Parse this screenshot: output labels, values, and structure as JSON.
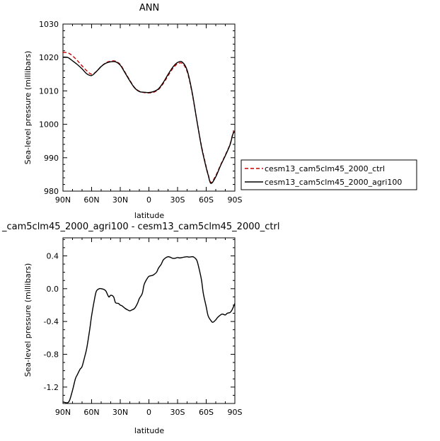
{
  "chart_data": [
    {
      "type": "line",
      "title": "ANN",
      "xlabel": "latitude",
      "ylabel": "Sea-level pressure (millibars)",
      "x_ticks": [
        "90N",
        "60N",
        "30N",
        "0",
        "30S",
        "60S",
        "90S"
      ],
      "y_ticks": [
        "980",
        "990",
        "1000",
        "1010",
        "1020",
        "1030"
      ],
      "xlim": [
        90,
        -90
      ],
      "ylim": [
        980,
        1030
      ],
      "legend_position": "lower-right, outside plot",
      "series": [
        {
          "name": "cesm13_cam5clm45_2000_ctrl",
          "color": "#cc0000",
          "dash": "dashed",
          "x": [
            90,
            85,
            80,
            75,
            70,
            65,
            60,
            55,
            50,
            45,
            40,
            35,
            30,
            25,
            20,
            15,
            10,
            5,
            0,
            -5,
            -10,
            -15,
            -20,
            -25,
            -30,
            -35,
            -40,
            -45,
            -50,
            -55,
            -60,
            -62,
            -65,
            -70,
            -75,
            -80,
            -85,
            -88,
            -90
          ],
          "y": [
            1021.5,
            1021.4,
            1020.5,
            1019.1,
            1017.5,
            1016.0,
            1015.0,
            1015.8,
            1017.3,
            1018.4,
            1018.9,
            1018.9,
            1017.9,
            1015.6,
            1013.2,
            1011.0,
            1009.9,
            1009.5,
            1009.4,
            1009.6,
            1010.4,
            1012.2,
            1014.5,
            1016.7,
            1018.1,
            1018.2,
            1015.8,
            1009.7,
            1001.5,
            993.6,
            987.3,
            985.1,
            982.6,
            984.6,
            987.8,
            990.8,
            994.1,
            997.3,
            998.0
          ]
        },
        {
          "name": "cesm13_cam5clm45_2000_agri100",
          "color": "#000000",
          "dash": "solid",
          "x": [
            90,
            85,
            80,
            75,
            70,
            65,
            60,
            55,
            50,
            45,
            40,
            35,
            30,
            25,
            20,
            15,
            10,
            5,
            0,
            -5,
            -10,
            -15,
            -20,
            -25,
            -30,
            -35,
            -40,
            -45,
            -50,
            -55,
            -60,
            -62,
            -65,
            -70,
            -75,
            -80,
            -85,
            -88,
            -90
          ],
          "y": [
            1020.1,
            1020.0,
            1019.0,
            1017.9,
            1016.6,
            1015.1,
            1014.6,
            1015.8,
            1017.3,
            1018.3,
            1018.7,
            1018.7,
            1017.7,
            1015.4,
            1013.0,
            1010.9,
            1009.8,
            1009.6,
            1009.5,
            1009.8,
            1010.6,
            1012.5,
            1014.9,
            1017.1,
            1018.5,
            1018.6,
            1016.2,
            1010.0,
            1001.5,
            993.3,
            987.0,
            984.9,
            982.3,
            984.3,
            987.6,
            990.6,
            993.9,
            997.1,
            997.8
          ]
        }
      ]
    },
    {
      "type": "line",
      "title": "_cam5clm45_2000_agri100 - cesm13_cam5clm45_2000_ctrl",
      "xlabel": "latitude",
      "ylabel": "Sea-level pressure (millibars)",
      "x_ticks": [
        "90N",
        "60N",
        "30N",
        "0",
        "30S",
        "60S",
        "90S"
      ],
      "y_ticks": [
        "-1.2",
        "-0.8",
        "-0.4",
        "0.0",
        "0.4"
      ],
      "xlim": [
        90,
        -90
      ],
      "ylim": [
        -1.4,
        0.62
      ],
      "series": [
        {
          "name": "",
          "color": "#000000",
          "dash": "solid",
          "x": [
            90,
            87,
            85,
            83,
            80,
            77,
            75,
            72,
            70,
            67,
            65,
            62,
            60,
            57,
            55,
            52,
            50,
            47,
            45,
            42,
            40,
            37,
            35,
            32,
            30,
            28,
            25,
            22,
            20,
            18,
            15,
            12,
            10,
            7,
            5,
            2,
            0,
            -3,
            -5,
            -8,
            -10,
            -13,
            -15,
            -18,
            -20,
            -22,
            -25,
            -27,
            -30,
            -32,
            -35,
            -37,
            -40,
            -42,
            -45,
            -47,
            -50,
            -52,
            -55,
            -57,
            -60,
            -62,
            -65,
            -67,
            -70,
            -72,
            -75,
            -77,
            -80,
            -82,
            -85,
            -87,
            -90
          ],
          "y": [
            -1.38,
            -1.39,
            -1.39,
            -1.36,
            -1.24,
            -1.1,
            -1.05,
            -0.98,
            -0.95,
            -0.82,
            -0.72,
            -0.5,
            -0.33,
            -0.13,
            -0.03,
            0.0,
            0.0,
            -0.01,
            -0.03,
            -0.1,
            -0.08,
            -0.1,
            -0.17,
            -0.18,
            -0.2,
            -0.21,
            -0.24,
            -0.26,
            -0.27,
            -0.26,
            -0.24,
            -0.18,
            -0.12,
            -0.06,
            0.05,
            0.12,
            0.15,
            0.16,
            0.17,
            0.2,
            0.25,
            0.3,
            0.35,
            0.38,
            0.39,
            0.385,
            0.37,
            0.37,
            0.38,
            0.375,
            0.38,
            0.385,
            0.39,
            0.385,
            0.39,
            0.385,
            0.35,
            0.27,
            0.11,
            -0.06,
            -0.22,
            -0.33,
            -0.39,
            -0.41,
            -0.38,
            -0.35,
            -0.32,
            -0.31,
            -0.32,
            -0.3,
            -0.29,
            -0.26,
            -0.18
          ]
        }
      ]
    }
  ],
  "legend_entries": [
    "cesm13_cam5clm45_2000_ctrl",
    "cesm13_cam5clm45_2000_agri100"
  ]
}
